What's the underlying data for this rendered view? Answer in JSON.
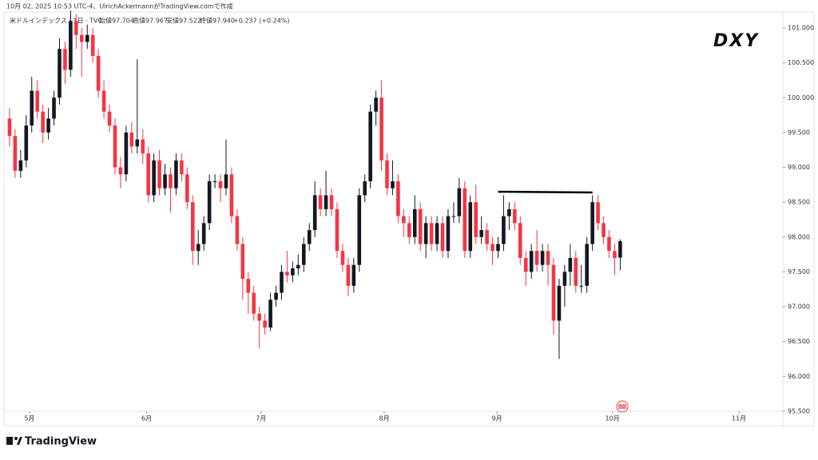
{
  "header": {
    "byline": "10月 02, 2025 10:53 UTC-4、UlrichAckermannがTradingView.comで作成",
    "brand": "TradingView"
  },
  "chart_data": {
    "type": "candlestick",
    "legend": {
      "symbol": "米ドルインデックス · 1日 · TVC",
      "open": "始値97.704",
      "high": "高値97.967",
      "low": "安値97.522",
      "close": "終値97.940",
      "change": "+0.237 (+0.24%)"
    },
    "annotation": "DXY",
    "up_color": "#131722",
    "down_color": "#f23645",
    "open": [
      99.7,
      99.45,
      98.95,
      99.1,
      99.6,
      100.1,
      99.8,
      99.5,
      99.7,
      100.0,
      100.7,
      100.4,
      101.1,
      100.9,
      100.8,
      100.9,
      100.6,
      100.1,
      99.8,
      99.6,
      99.0,
      98.9,
      99.5,
      99.3,
      99.4,
      99.2,
      98.6,
      99.1,
      98.7,
      98.9,
      98.7,
      99.1,
      98.9,
      98.5,
      97.8,
      97.9,
      98.2,
      98.8,
      98.8,
      98.7,
      98.9,
      98.3,
      97.9,
      97.4,
      97.2,
      96.9,
      96.8,
      96.7,
      97.1,
      97.2,
      97.5,
      97.45,
      97.55,
      97.6,
      97.9,
      98.1,
      98.6,
      98.4,
      98.6,
      98.4,
      97.8,
      97.6,
      97.3,
      97.6,
      98.6,
      98.8,
      99.8,
      100.0,
      99.1,
      98.7,
      98.8,
      98.3,
      98.2,
      98.0,
      98.4,
      97.9,
      98.2,
      97.9,
      98.2,
      97.8,
      98.3,
      98.3,
      98.7,
      97.8,
      98.5,
      98.0,
      98.1,
      97.9,
      97.8,
      97.9,
      98.3,
      98.4,
      98.2,
      97.7,
      97.5,
      97.8,
      97.6,
      97.8,
      97.6,
      96.8,
      97.3,
      97.5,
      97.7,
      97.3,
      97.3,
      97.9,
      98.5,
      98.2,
      98.0,
      97.8,
      97.704
    ],
    "high": [
      99.85,
      99.55,
      99.25,
      99.75,
      100.3,
      100.25,
      99.9,
      99.85,
      100.1,
      100.85,
      100.8,
      101.25,
      101.2,
      101.0,
      101.05,
      101.0,
      100.7,
      100.25,
      99.9,
      99.7,
      99.15,
      99.6,
      99.65,
      100.55,
      99.55,
      99.3,
      99.2,
      99.25,
      99.05,
      99.0,
      99.2,
      99.2,
      99.0,
      98.6,
      98.1,
      98.3,
      98.9,
      98.9,
      98.9,
      99.4,
      99.0,
      98.4,
      98.0,
      97.5,
      97.3,
      97.0,
      96.9,
      97.2,
      97.3,
      97.6,
      97.8,
      97.65,
      97.75,
      98.0,
      98.2,
      98.8,
      98.7,
      98.95,
      98.7,
      98.5,
      97.9,
      97.7,
      97.7,
      98.7,
      98.9,
      99.9,
      100.1,
      100.25,
      99.2,
      99.1,
      98.9,
      98.4,
      98.3,
      98.6,
      98.5,
      98.3,
      98.3,
      98.3,
      98.3,
      98.4,
      98.5,
      98.85,
      98.8,
      98.6,
      98.75,
      98.3,
      98.2,
      98.0,
      98.0,
      98.6,
      98.5,
      98.5,
      98.3,
      97.8,
      97.9,
      98.1,
      97.9,
      97.9,
      97.7,
      97.4,
      97.6,
      97.9,
      97.8,
      97.6,
      98.0,
      98.6,
      98.6,
      98.3,
      98.1,
      97.9,
      97.967
    ],
    "low": [
      99.3,
      98.85,
      98.85,
      99.0,
      99.5,
      99.7,
      99.35,
      99.4,
      99.6,
      99.9,
      100.2,
      100.3,
      100.7,
      100.3,
      100.7,
      100.5,
      100.0,
      99.7,
      99.5,
      98.9,
      98.7,
      98.8,
      99.2,
      99.2,
      99.05,
      98.5,
      98.5,
      98.6,
      98.6,
      98.35,
      98.6,
      98.8,
      98.4,
      97.6,
      97.6,
      97.8,
      98.1,
      98.7,
      98.5,
      98.6,
      98.2,
      97.8,
      97.1,
      96.9,
      96.8,
      96.4,
      96.6,
      96.65,
      97.0,
      97.1,
      97.35,
      97.35,
      97.45,
      97.5,
      97.8,
      98.0,
      98.3,
      98.3,
      98.3,
      97.7,
      97.5,
      97.15,
      97.2,
      97.5,
      98.5,
      98.7,
      99.6,
      98.95,
      98.6,
      98.6,
      98.2,
      98.0,
      97.9,
      97.9,
      97.8,
      97.7,
      97.8,
      97.8,
      97.7,
      97.7,
      98.2,
      98.2,
      97.7,
      97.7,
      97.9,
      97.9,
      97.8,
      97.6,
      97.7,
      97.8,
      98.1,
      98.1,
      97.6,
      97.3,
      97.4,
      97.5,
      97.5,
      97.3,
      96.6,
      96.25,
      97.0,
      97.3,
      97.2,
      97.2,
      97.2,
      97.8,
      98.1,
      97.9,
      97.7,
      97.45,
      97.522
    ],
    "close": [
      99.45,
      98.95,
      99.1,
      99.6,
      100.1,
      99.8,
      99.5,
      99.7,
      100.0,
      100.7,
      100.4,
      101.1,
      100.9,
      100.8,
      100.9,
      100.6,
      100.1,
      99.8,
      99.6,
      99.0,
      98.9,
      99.5,
      99.3,
      99.4,
      99.2,
      98.6,
      99.1,
      98.7,
      98.9,
      98.7,
      99.1,
      98.9,
      98.5,
      97.8,
      97.9,
      98.2,
      98.8,
      98.8,
      98.7,
      98.9,
      98.3,
      97.9,
      97.4,
      97.2,
      96.9,
      96.8,
      96.7,
      97.1,
      97.2,
      97.5,
      97.45,
      97.55,
      97.6,
      97.9,
      98.1,
      98.6,
      98.4,
      98.6,
      98.4,
      97.8,
      97.6,
      97.3,
      97.6,
      98.6,
      98.8,
      99.8,
      100.0,
      99.1,
      98.7,
      98.8,
      98.3,
      98.2,
      98.0,
      98.4,
      97.9,
      98.2,
      97.9,
      98.2,
      97.8,
      98.3,
      98.3,
      98.7,
      97.8,
      98.5,
      98.0,
      98.1,
      97.9,
      97.8,
      97.9,
      98.3,
      98.4,
      98.2,
      97.7,
      97.5,
      97.8,
      97.6,
      97.8,
      97.6,
      96.8,
      97.3,
      97.5,
      97.7,
      97.3,
      97.3,
      97.9,
      98.5,
      98.2,
      98.0,
      97.8,
      97.7,
      97.94
    ],
    "trendline": {
      "x": [
        88,
        105
      ],
      "y": [
        98.65,
        98.64
      ]
    },
    "xlim": [
      -1,
      139.3
    ],
    "xticks": [
      {
        "value": 3.6,
        "label": "5月"
      },
      {
        "value": 24.7,
        "label": "6月"
      },
      {
        "value": 45.3,
        "label": "7月"
      },
      {
        "value": 67.5,
        "label": "8月"
      },
      {
        "value": 87.8,
        "label": "9月"
      },
      {
        "value": 108.6,
        "label": "10月"
      },
      {
        "value": 131.4,
        "label": "11月"
      }
    ],
    "ylim": [
      95.35,
      101.23
    ],
    "yticks": [
      {
        "value": 95.5,
        "label": "95.500"
      },
      {
        "value": 96,
        "label": "96.000"
      },
      {
        "value": 96.5,
        "label": "96.500"
      },
      {
        "value": 97,
        "label": "97.000"
      },
      {
        "value": 97.5,
        "label": "97.500"
      },
      {
        "value": 98,
        "label": "98.000"
      },
      {
        "value": 98.5,
        "label": "98.500"
      },
      {
        "value": 99,
        "label": "99.000"
      },
      {
        "value": 99.5,
        "label": "99.500"
      },
      {
        "value": 100,
        "label": "100.000"
      },
      {
        "value": 100.5,
        "label": "100.500"
      },
      {
        "value": 101,
        "label": "101.000"
      }
    ]
  }
}
